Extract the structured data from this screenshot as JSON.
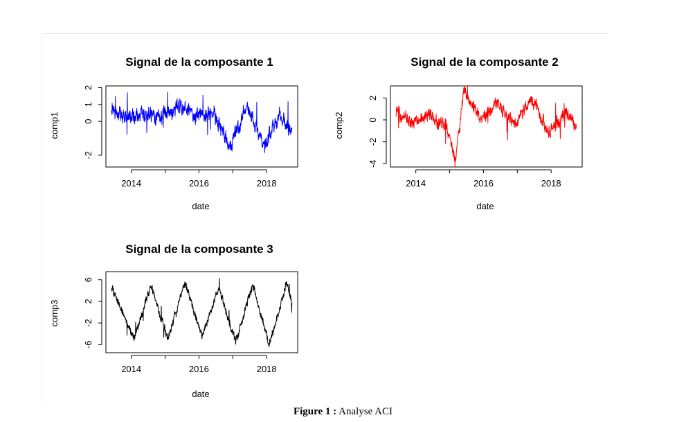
{
  "caption": {
    "label": "Figure 1 :",
    "text": "Analyse ACI"
  },
  "chart_data": [
    {
      "type": "line",
      "title": "Signal de la composante 1",
      "xlabel": "date",
      "ylabel": "comp1",
      "xticks": [
        "2014",
        "2016",
        "2018"
      ],
      "yticks": [
        "-2",
        "0",
        "1",
        "2"
      ],
      "xlim": [
        "2013-04-01",
        "2018-12-01"
      ],
      "ylim": [
        -2.7,
        2.1
      ],
      "color": "#0000ff",
      "x": [
        "2013-06",
        "2013-12",
        "2014-06",
        "2014-12",
        "2015-06",
        "2015-12",
        "2016-06",
        "2016-12",
        "2017-06",
        "2017-12",
        "2018-06",
        "2018-10"
      ],
      "y": [
        0.6,
        0.2,
        0.4,
        0.3,
        1.0,
        0.3,
        0.6,
        -1.5,
        0.9,
        -1.4,
        0.3,
        -0.6
      ]
    },
    {
      "type": "line",
      "title": "Signal de la composante 2",
      "xlabel": "date",
      "ylabel": "comp2",
      "xticks": [
        "2014",
        "2016",
        "2018"
      ],
      "yticks": [
        "-4",
        "-2",
        "0",
        "2"
      ],
      "xlim": [
        "2013-04-01",
        "2018-12-01"
      ],
      "ylim": [
        -4.3,
        3.1
      ],
      "color": "#ff0000",
      "x": [
        "2013-06",
        "2013-12",
        "2014-06",
        "2014-12",
        "2015-03",
        "2015-06",
        "2015-12",
        "2016-06",
        "2016-12",
        "2017-06",
        "2017-12",
        "2018-06",
        "2018-10"
      ],
      "y": [
        0.7,
        -0.2,
        0.3,
        -0.6,
        -3.6,
        2.5,
        0.0,
        1.6,
        -0.6,
        2.0,
        -1.1,
        0.7,
        -0.6
      ]
    },
    {
      "type": "line",
      "title": "Signal de la composante 3",
      "xlabel": "date",
      "ylabel": "comp3",
      "xticks": [
        "2014",
        "2016",
        "2018"
      ],
      "yticks": [
        "-6",
        "-2",
        "2",
        "6"
      ],
      "xlim": [
        "2013-04-01",
        "2018-12-01"
      ],
      "ylim": [
        -7.5,
        7.5
      ],
      "color": "#000000",
      "x": [
        "2013-06",
        "2013-10",
        "2014-02",
        "2014-08",
        "2015-02",
        "2015-08",
        "2016-02",
        "2016-08",
        "2017-02",
        "2017-08",
        "2018-02",
        "2018-08",
        "2018-10"
      ],
      "y": [
        4.5,
        0.0,
        -5.0,
        5.0,
        -5.0,
        5.5,
        -4.5,
        4.5,
        -5.5,
        5.0,
        -6.0,
        5.5,
        2.0
      ]
    }
  ]
}
